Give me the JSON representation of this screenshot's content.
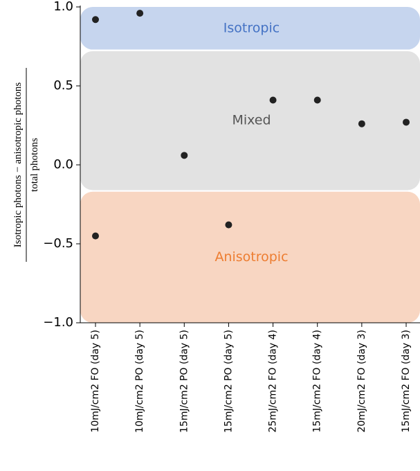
{
  "chart_data": {
    "type": "scatter",
    "ylabel_numerator": "Isotropic photons − anisotropic photons",
    "ylabel_denominator": "total photons",
    "categories": [
      "10mJ/cm2 FO (day 5)",
      "10mJ/cm2 PO (day 5)",
      "15mJ/cm2 PO (day 5)",
      "15mJ/cm2 PO (day 5)",
      "25mJ/cm2 FO (day 4)",
      "15mJ/cm2 FO (day 4)",
      "20mJ/cm2 FO (day 3)",
      "15mJ/cm2 FO (day 3)"
    ],
    "series": [
      {
        "color": "#222222",
        "values": [
          0.92,
          0.96,
          0.06,
          -0.38,
          0.41,
          0.41,
          0.26,
          0.27
        ]
      },
      {
        "color": "#222222",
        "values": [
          -0.45,
          null,
          null,
          null,
          null,
          null,
          null,
          null
        ]
      }
    ],
    "regions": [
      {
        "label": "Isotropic",
        "from": 0.73,
        "to": 1.0,
        "color": "#c6d5ee",
        "text_color": "#4472c4"
      },
      {
        "label": "Mixed",
        "from": -0.16,
        "to": 0.72,
        "color": "#e2e2e2",
        "text_color": "#555555"
      },
      {
        "label": "Anisotropic",
        "from": -1.0,
        "to": -0.17,
        "color": "#f8d6c2",
        "text_color": "#ed7d31"
      }
    ],
    "ylim": [
      -1.0,
      1.0
    ],
    "yticks": [
      {
        "value": -1.0,
        "label": "−1.0"
      },
      {
        "value": -0.5,
        "label": "−0.5"
      },
      {
        "value": 0.0,
        "label": "0.0"
      },
      {
        "value": 0.5,
        "label": "0.5"
      },
      {
        "value": 1.0,
        "label": "1.0"
      }
    ]
  }
}
